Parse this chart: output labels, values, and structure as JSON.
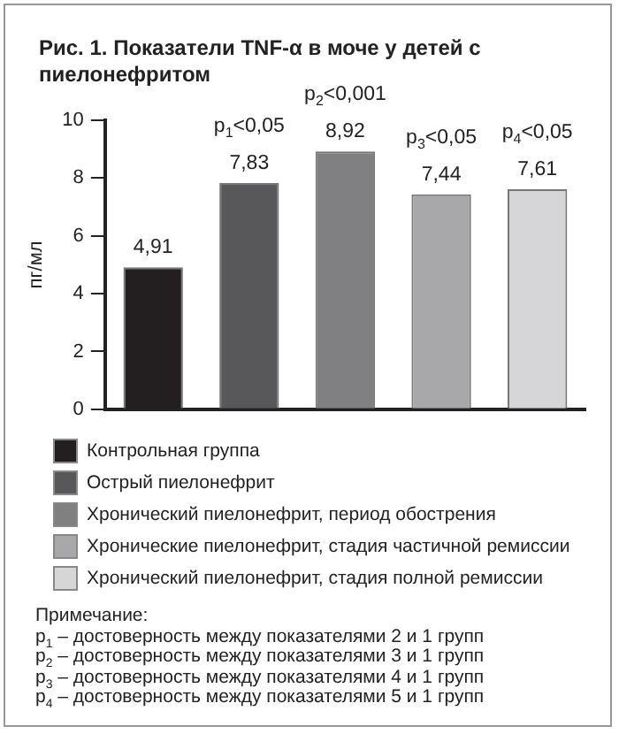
{
  "chart_data": {
    "type": "bar",
    "title": "Рис. 1. Показатели TNF-α в моче у детей с пиелонефритом",
    "ylabel": "пг/мл",
    "categories": [
      null,
      null,
      null,
      null,
      null
    ],
    "series": [
      {
        "name": "Контрольная группа",
        "color": "#231f20",
        "values": [
          4.91,
          null,
          null,
          null,
          null
        ],
        "value_labels": [
          "4,91",
          null,
          null,
          null,
          null
        ]
      },
      {
        "name": "Острый пиелонефрит",
        "color": "#58585a",
        "values": [
          null,
          7.83,
          null,
          null,
          null
        ],
        "value_labels": [
          null,
          "7,83",
          null,
          null,
          null
        ]
      },
      {
        "name": "Хронический пиелонефрит, период обострения",
        "color": "#808082",
        "values": [
          null,
          null,
          8.92,
          null,
          null
        ],
        "value_labels": [
          null,
          null,
          "8,92",
          null,
          null
        ]
      },
      {
        "name": "Хронические пиелонефрит, стадия частичной ремиссии",
        "color": "#a8a8aa",
        "values": [
          null,
          null,
          null,
          7.44,
          null
        ],
        "value_labels": [
          null,
          null,
          null,
          "7,44",
          null
        ]
      },
      {
        "name": "Хронический пиелонефрит, стадия полной ремиссии",
        "color": "#d6d6d8",
        "values": [
          null,
          null,
          null,
          null,
          7.61
        ],
        "value_labels": [
          null,
          null,
          null,
          null,
          "7,61"
        ]
      }
    ],
    "ylim": [
      0,
      10
    ],
    "yticks": [
      0,
      2,
      4,
      6,
      8,
      10
    ],
    "grid": false,
    "legend": "bottom",
    "annotations": [
      {
        "text": "p$_{1}$<0,05",
        "y": 7.83
      },
      {
        "text": "p$_{2}$<0,001",
        "y": 8.92
      },
      {
        "text": "p$_{3}$<0,05",
        "y": 7.44
      },
      {
        "text": "p$_{4}$<0,05",
        "y": 7.61
      },
      "Примечание:",
      "p$_{1}$ – достоверность между показателями 2 и 1 групп",
      "p$_{2}$ – достоверность между показателями 3 и 1 групп",
      "p$_{3}$ – достоверность между показателями 4 и 1 групп",
      "p$_{4}$ – достоверность между показателями 5 и 1 групп"
    ]
  }
}
